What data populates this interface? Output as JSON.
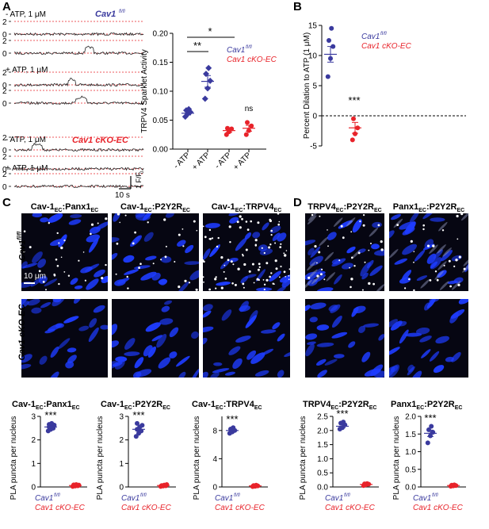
{
  "panels": {
    "A": "A",
    "B": "B",
    "C": "C",
    "D": "D"
  },
  "traces": {
    "cond1": "- ATP, 1 μM",
    "cond2": "+ ATP, 1 μM",
    "cond3": "- ATP, 1 μM",
    "cond4": "+ ATP, 1 μM",
    "geno_ctrl": "Cav1",
    "geno_ctrl_sup": "fl/fl",
    "geno_ko": "Cav1 cKO-EC",
    "tick_hi": "2",
    "tick_lo": "0",
    "scale_y": "1 F/F",
    "scale_y_sub": "0",
    "scale_x": "10 s"
  },
  "legend": {
    "ctrl": "Cav1",
    "ctrl_sup": "fl/fl",
    "ko": "Cav1 cKO-EC"
  },
  "colors": {
    "ctrl": "#3a3a9e",
    "ko": "#e8232a",
    "nucleus": "#1e3cff"
  },
  "images": {
    "C_headers": [
      "Cav-1EC:Panx1EC",
      "Cav-1EC:P2Y2REC",
      "Cav-1EC:TRPV4EC"
    ],
    "D_headers": [
      "TRPV4EC:P2Y2REC",
      "Panx1EC:P2Y2REC"
    ],
    "header_parts": [
      [
        [
          "Cav-1",
          "EC",
          ":Panx1",
          "EC"
        ]
      ],
      [
        [
          "Cav-1",
          "EC",
          ":P2Y2R",
          "EC"
        ]
      ],
      [
        [
          "Cav-1",
          "EC",
          ":TRPV4",
          "EC"
        ]
      ],
      [
        [
          "TRPV4",
          "EC",
          ":P2Y2R",
          "EC"
        ]
      ],
      [
        [
          "Panx1",
          "EC",
          ":P2Y2R",
          "EC"
        ]
      ]
    ],
    "row_ctrl": "Cav1",
    "row_ctrl_sup": "fl/fl",
    "row_ko": "Cav1 cKO-EC",
    "scalebar": "10 μm"
  },
  "chart_data": [
    {
      "id": "A_sparklet",
      "type": "scatter",
      "ylabel": "TRPV4 Sparklet Activity",
      "ylim": [
        0,
        0.2
      ],
      "yticks": [
        "0.00",
        "0.05",
        "0.10",
        "0.15",
        "0.20"
      ],
      "categories": [
        "- ATP",
        "+ ATP",
        "- ATP",
        "+ ATP"
      ],
      "series": [
        {
          "name": "Cav1 fl/fl",
          "category_index": [
            0,
            1
          ],
          "values": [
            [
              0.056,
              0.061,
              0.064,
              0.067,
              0.069
            ],
            [
              0.087,
              0.105,
              0.118,
              0.13,
              0.14
            ]
          ],
          "means": [
            0.062,
            0.117
          ],
          "sems": [
            0.003,
            0.01
          ]
        },
        {
          "name": "Cav1 cKO-EC",
          "category_index": [
            2,
            3
          ],
          "values": [
            [
              0.025,
              0.03,
              0.035,
              0.036
            ],
            [
              0.025,
              0.032,
              0.04,
              0.046
            ]
          ],
          "means": [
            0.032,
            0.036
          ],
          "sems": [
            0.003,
            0.005
          ]
        }
      ],
      "annotations": [
        "**",
        "*",
        "ns"
      ]
    },
    {
      "id": "B_dilation",
      "type": "scatter",
      "ylabel": "Percent Dilation to ATP (1 μM)",
      "ylim": [
        -5,
        15
      ],
      "yticks": [
        "-5",
        "0",
        "5",
        "10",
        "15"
      ],
      "series": [
        {
          "name": "Cav1 fl/fl",
          "values": [
            6.5,
            9.5,
            11.5,
            12.5,
            14.5
          ],
          "mean": 10.2,
          "sem": 1.3
        },
        {
          "name": "Cav1 cKO-EC",
          "values": [
            -4.0,
            -3.0,
            -2.0,
            -0.5
          ],
          "mean": -2.0,
          "sem": 0.9
        }
      ],
      "annotations": [
        "***"
      ]
    },
    {
      "id": "C1",
      "type": "scatter",
      "title": "Cav-1EC:Panx1EC",
      "ylabel": "PLA puncta per nucleus",
      "ylim": [
        0,
        3
      ],
      "yticks": [
        "0",
        "1",
        "2",
        "3"
      ],
      "series": [
        {
          "name": "Cav1 fl/fl",
          "values": [
            2.38,
            2.45,
            2.5,
            2.55,
            2.6,
            2.63,
            2.66,
            2.7
          ],
          "mean": 2.55,
          "sem": 0.04
        },
        {
          "name": "Cav1 cKO-EC",
          "values": [
            0.02,
            0.04,
            0.05,
            0.06,
            0.07,
            0.08,
            0.09,
            0.1
          ],
          "mean": 0.06,
          "sem": 0.01
        }
      ],
      "annotations": [
        "***"
      ]
    },
    {
      "id": "C2",
      "type": "scatter",
      "title": "Cav-1EC:P2Y2REC",
      "ylabel": "PLA puncta per nucleus",
      "ylim": [
        0,
        3
      ],
      "yticks": [
        "0",
        "1",
        "2",
        "3"
      ],
      "series": [
        {
          "name": "Cav1 fl/fl",
          "values": [
            2.15,
            2.28,
            2.38,
            2.45,
            2.55,
            2.62,
            2.7
          ],
          "mean": 2.45,
          "sem": 0.07
        },
        {
          "name": "Cav1 cKO-EC",
          "values": [
            0.02,
            0.04,
            0.05,
            0.06,
            0.08,
            0.1
          ],
          "mean": 0.06,
          "sem": 0.01
        }
      ],
      "annotations": [
        "***"
      ]
    },
    {
      "id": "C3",
      "type": "scatter",
      "title": "Cav-1EC:TRPV4EC",
      "ylabel": "PLA puncta per nucleus",
      "ylim": [
        0,
        10
      ],
      "yticks": [
        "0",
        "4",
        "8"
      ],
      "series": [
        {
          "name": "Cav1 fl/fl",
          "values": [
            7.6,
            7.8,
            8.0,
            8.2,
            8.4
          ],
          "mean": 8.0,
          "sem": 0.15
        },
        {
          "name": "Cav1 cKO-EC",
          "values": [
            0.05,
            0.1,
            0.15,
            0.2,
            0.25
          ],
          "mean": 0.15,
          "sem": 0.03
        }
      ],
      "annotations": [
        "***"
      ]
    },
    {
      "id": "D1",
      "type": "scatter",
      "title": "TRPV4EC:P2Y2REC",
      "ylabel": "PLA puncta per nucleus",
      "ylim": [
        0,
        2.5
      ],
      "yticks": [
        "0.0",
        "0.5",
        "1.0",
        "1.5",
        "2.0",
        "2.5"
      ],
      "series": [
        {
          "name": "Cav1 fl/fl",
          "values": [
            2.05,
            2.1,
            2.2,
            2.26,
            2.3
          ],
          "mean": 2.15,
          "sem": 0.05
        },
        {
          "name": "Cav1 cKO-EC",
          "values": [
            0.05,
            0.08,
            0.1,
            0.11,
            0.12
          ],
          "mean": 0.09,
          "sem": 0.02
        }
      ],
      "annotations": [
        "***"
      ]
    },
    {
      "id": "D2",
      "type": "scatter",
      "title": "Panx1EC:P2Y2REC",
      "ylabel": "PLA puncta per nucleus",
      "ylim": [
        0,
        2
      ],
      "yticks": [
        "0.0",
        "0.5",
        "1.0",
        "1.5",
        "2.0"
      ],
      "series": [
        {
          "name": "Cav1 fl/fl",
          "values": [
            1.25,
            1.45,
            1.55,
            1.62,
            1.72
          ],
          "mean": 1.52,
          "sem": 0.09
        },
        {
          "name": "Cav1 cKO-EC",
          "values": [
            0.02,
            0.03,
            0.04,
            0.05,
            0.06
          ],
          "mean": 0.04,
          "sem": 0.01
        }
      ],
      "annotations": [
        "***"
      ]
    }
  ]
}
